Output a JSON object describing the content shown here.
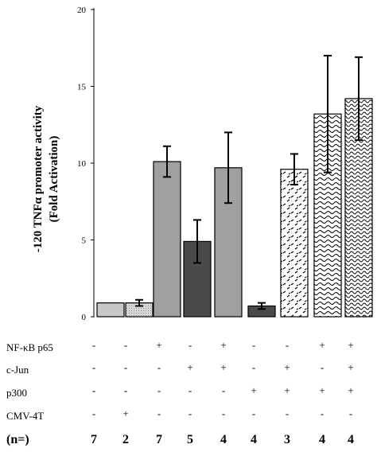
{
  "chart_data": {
    "type": "bar",
    "ylabel_line1": "-120 TNFα promoter activity",
    "ylabel_line2": "(Fold Activation)",
    "ylim": [
      0,
      20
    ],
    "yticks": [
      "0",
      "5",
      "10",
      "15",
      "20"
    ],
    "values": [
      0.9,
      0.9,
      10.1,
      4.9,
      9.7,
      0.7,
      9.6,
      13.2,
      14.2
    ],
    "errors": [
      0,
      0.2,
      1.0,
      1.4,
      2.3,
      0.2,
      1.0,
      3.8,
      2.7
    ],
    "bar_styles": [
      "light-gray",
      "light-gray-stipple",
      "medium-gray",
      "dark-gray",
      "medium-gray",
      "dark-gray",
      "dashes",
      "waves",
      "waves-dense"
    ]
  },
  "table": {
    "rows": [
      {
        "label": "NF-κB p65",
        "cells": [
          "-",
          "-",
          "+",
          "-",
          "+",
          "-",
          "-",
          "+",
          "+"
        ]
      },
      {
        "label": "c-Jun",
        "cells": [
          "-",
          "-",
          "-",
          "+",
          "+",
          "-",
          "+",
          "-",
          "+"
        ]
      },
      {
        "label": "p300",
        "cells": [
          "-",
          "-",
          "-",
          "-",
          "-",
          "+",
          "+",
          "+",
          "+"
        ]
      },
      {
        "label": "CMV-4T",
        "cells": [
          "-",
          "+",
          "-",
          "-",
          "-",
          "-",
          "-",
          "-",
          "-"
        ]
      }
    ],
    "n_label": "(n=)",
    "n_values": [
      "7",
      "2",
      "7",
      "5",
      "4",
      "4",
      "3",
      "4",
      "4"
    ]
  }
}
